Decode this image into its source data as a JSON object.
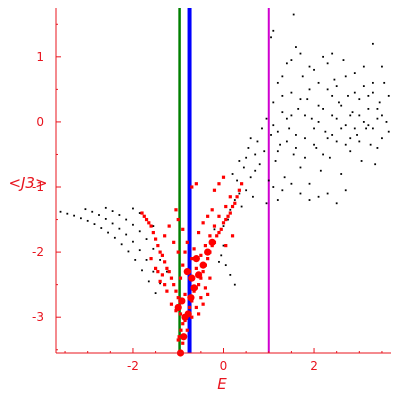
{
  "chart_data": {
    "type": "scatter",
    "title": "",
    "xlabel": "E",
    "ylabel": "<J3>",
    "xlim": [
      -3.7,
      3.7
    ],
    "ylim": [
      -3.55,
      1.75
    ],
    "grid": false,
    "legend": "none",
    "x_ticks": [
      -2,
      0,
      2
    ],
    "x_tick_labels": [
      "-2",
      "0",
      "2"
    ],
    "y_ticks": [
      -3,
      -2,
      -1,
      0,
      1
    ],
    "y_tick_labels": [
      "-3",
      "-2",
      "-1",
      "0",
      "1"
    ],
    "vertical_lines": [
      {
        "x": -0.97,
        "color": "#008000"
      },
      {
        "x": -0.75,
        "color": "#0000ff"
      },
      {
        "x": 1.0,
        "color": "#d000d0"
      }
    ],
    "colors": {
      "axis": "#e8141e",
      "cloud": "#000000",
      "highlight": "#ff0000"
    },
    "series": [
      {
        "color": "#000000",
        "points": [
          [
            -3.6,
            -1.38
          ],
          [
            -3.45,
            -1.41
          ],
          [
            -3.3,
            -1.44
          ],
          [
            -3.15,
            -1.48
          ],
          [
            -3.0,
            -1.52
          ],
          [
            -2.85,
            -1.57
          ],
          [
            -2.7,
            -1.63
          ],
          [
            -2.55,
            -1.7
          ],
          [
            -2.4,
            -1.78
          ],
          [
            -2.25,
            -1.88
          ],
          [
            -2.1,
            -1.99
          ],
          [
            -1.95,
            -2.12
          ],
          [
            -1.8,
            -2.28
          ],
          [
            -1.65,
            -2.45
          ],
          [
            -1.5,
            -2.63
          ],
          [
            -3.05,
            -1.34
          ],
          [
            -2.9,
            -1.38
          ],
          [
            -2.75,
            -1.43
          ],
          [
            -2.6,
            -1.49
          ],
          [
            -2.45,
            -1.56
          ],
          [
            -2.3,
            -1.64
          ],
          [
            -2.15,
            -1.73
          ],
          [
            -2.0,
            -1.84
          ],
          [
            -1.85,
            -1.97
          ],
          [
            -1.7,
            -2.12
          ],
          [
            -1.55,
            -2.3
          ],
          [
            -1.4,
            -2.48
          ],
          [
            -2.6,
            -1.32
          ],
          [
            -2.45,
            -1.37
          ],
          [
            -2.3,
            -1.43
          ],
          [
            -2.15,
            -1.5
          ],
          [
            -2.0,
            -1.58
          ],
          [
            -1.85,
            -1.68
          ],
          [
            -1.7,
            -1.8
          ],
          [
            -1.55,
            -1.95
          ],
          [
            -1.4,
            -2.12
          ],
          [
            -1.25,
            -2.3
          ],
          [
            -2.0,
            -1.33
          ],
          [
            -1.85,
            -1.4
          ],
          [
            -1.7,
            -1.49
          ],
          [
            -1.55,
            -1.6
          ],
          [
            0.2,
            -0.8
          ],
          [
            0.3,
            -0.9
          ],
          [
            0.4,
            -0.95
          ],
          [
            0.45,
            -0.7
          ],
          [
            0.5,
            -0.55
          ],
          [
            0.55,
            -0.4
          ],
          [
            0.6,
            -0.25
          ],
          [
            0.7,
            -0.5
          ],
          [
            0.75,
            -0.3
          ],
          [
            0.8,
            -0.65
          ],
          [
            0.85,
            -0.1
          ],
          [
            0.9,
            -0.45
          ],
          [
            0.95,
            0.05
          ],
          [
            1.0,
            -0.9
          ],
          [
            0.25,
            -1.2
          ],
          [
            0.35,
            -1.1
          ],
          [
            0.4,
            -1.3
          ],
          [
            0.5,
            -1.05
          ],
          [
            0.6,
            -0.85
          ],
          [
            0.65,
            -1.15
          ],
          [
            0.7,
            -0.75
          ],
          [
            0.35,
            -0.6
          ],
          [
            0.15,
            -1.35
          ],
          [
            0.1,
            -1.5
          ],
          [
            1.05,
            -0.2
          ],
          [
            1.1,
            0.3
          ],
          [
            1.15,
            -0.6
          ],
          [
            1.2,
            0.6
          ],
          [
            1.25,
            -0.35
          ],
          [
            1.3,
            0.15
          ],
          [
            1.35,
            -0.85
          ],
          [
            1.4,
            0.9
          ],
          [
            1.45,
            -0.1
          ],
          [
            1.5,
            0.45
          ],
          [
            1.55,
            -0.5
          ],
          [
            1.6,
            1.15
          ],
          [
            1.65,
            0.2
          ],
          [
            1.7,
            -0.7
          ],
          [
            1.75,
            0.7
          ],
          [
            1.8,
            -0.25
          ],
          [
            1.85,
            0.35
          ],
          [
            1.9,
            -0.95
          ],
          [
            1.95,
            0.05
          ],
          [
            2.0,
            0.8
          ],
          [
            2.05,
            -0.4
          ],
          [
            2.1,
            0.25
          ],
          [
            2.15,
            -0.75
          ],
          [
            2.2,
            1.0
          ],
          [
            2.25,
            -0.15
          ],
          [
            2.3,
            0.5
          ],
          [
            2.35,
            -0.55
          ],
          [
            2.4,
            0.1
          ],
          [
            2.45,
            0.65
          ],
          [
            2.5,
            -0.3
          ],
          [
            2.55,
            0.3
          ],
          [
            2.6,
            -0.8
          ],
          [
            2.65,
            0.95
          ],
          [
            2.7,
            -0.05
          ],
          [
            2.75,
            0.4
          ],
          [
            2.8,
            -0.45
          ],
          [
            2.85,
            0.15
          ],
          [
            2.9,
            0.75
          ],
          [
            2.95,
            -0.2
          ],
          [
            3.0,
            0.35
          ],
          [
            3.05,
            -0.6
          ],
          [
            3.1,
            0.55
          ],
          [
            3.15,
            -0.1
          ],
          [
            3.2,
            0.2
          ],
          [
            3.25,
            -0.35
          ],
          [
            3.3,
            0.45
          ],
          [
            3.35,
            -0.65
          ],
          [
            3.4,
            0.05
          ],
          [
            3.45,
            0.3
          ],
          [
            3.5,
            -0.25
          ],
          [
            3.55,
            0.6
          ],
          [
            3.6,
            0.0
          ],
          [
            3.65,
            -0.15
          ],
          [
            3.65,
            0.4
          ],
          [
            1.1,
            -0.05
          ],
          [
            1.2,
            -0.15
          ],
          [
            1.3,
            0.4
          ],
          [
            1.4,
            -0.3
          ],
          [
            1.5,
            0.1
          ],
          [
            1.6,
            -0.2
          ],
          [
            1.7,
            0.35
          ],
          [
            1.8,
            0.1
          ],
          [
            1.9,
            0.5
          ],
          [
            2.0,
            -0.1
          ],
          [
            2.1,
            0.0
          ],
          [
            2.2,
            0.2
          ],
          [
            2.3,
            -0.25
          ],
          [
            2.4,
            0.4
          ],
          [
            2.5,
            0.05
          ],
          [
            2.6,
            0.25
          ],
          [
            2.7,
            -0.35
          ],
          [
            2.8,
            0.1
          ],
          [
            2.9,
            -0.1
          ],
          [
            3.0,
            0.1
          ],
          [
            3.1,
            0.0
          ],
          [
            3.2,
            0.4
          ],
          [
            3.3,
            -0.1
          ],
          [
            3.4,
            0.2
          ],
          [
            3.5,
            0.1
          ],
          [
            1.2,
            -0.45
          ],
          [
            1.4,
            0.05
          ],
          [
            1.6,
            -0.4
          ],
          [
            1.8,
            -0.55
          ],
          [
            2.0,
            -0.35
          ],
          [
            2.2,
            -0.5
          ],
          [
            2.4,
            -0.2
          ],
          [
            2.6,
            -0.1
          ],
          [
            2.8,
            -0.25
          ],
          [
            3.0,
            -0.3
          ],
          [
            3.2,
            -0.05
          ],
          [
            3.4,
            -0.4
          ],
          [
            1.3,
            0.7
          ],
          [
            1.5,
            0.95
          ],
          [
            1.7,
            1.05
          ],
          [
            1.9,
            0.85
          ],
          [
            2.1,
            0.6
          ],
          [
            2.3,
            0.9
          ],
          [
            2.5,
            0.55
          ],
          [
            2.7,
            0.7
          ],
          [
            2.9,
            0.45
          ],
          [
            3.1,
            0.85
          ],
          [
            3.3,
            0.6
          ],
          [
            3.5,
            0.85
          ],
          [
            1.05,
            1.3
          ],
          [
            1.1,
            1.4
          ],
          [
            1.55,
            1.65
          ],
          [
            2.4,
            1.05
          ],
          [
            3.3,
            1.2
          ],
          [
            1.1,
            -1.0
          ],
          [
            1.3,
            -1.05
          ],
          [
            1.5,
            -0.95
          ],
          [
            1.7,
            -1.1
          ],
          [
            1.9,
            -1.2
          ],
          [
            2.1,
            -1.15
          ],
          [
            2.3,
            -1.1
          ],
          [
            2.5,
            -1.25
          ],
          [
            2.7,
            -1.05
          ],
          [
            0.95,
            -1.25
          ],
          [
            1.2,
            -1.2
          ],
          [
            0.0,
            -1.9
          ],
          [
            -0.05,
            -2.05
          ],
          [
            0.05,
            -2.2
          ],
          [
            0.15,
            -2.35
          ],
          [
            0.25,
            -2.5
          ],
          [
            -0.1,
            -2.15
          ],
          [
            0.0,
            -1.6
          ],
          [
            -0.2,
            -1.65
          ]
        ]
      },
      {
        "color": "#ff0000",
        "points": [
          [
            -0.95,
            -3.55
          ],
          [
            -0.98,
            -3.3
          ],
          [
            -0.94,
            -3.2
          ],
          [
            -0.9,
            -3.1
          ],
          [
            -0.85,
            -3.05
          ],
          [
            -0.8,
            -2.95
          ],
          [
            -0.75,
            -2.85
          ],
          [
            -0.7,
            -2.75
          ],
          [
            -0.65,
            -2.6
          ],
          [
            -0.6,
            -2.55
          ],
          [
            -0.55,
            -2.5
          ],
          [
            -0.5,
            -2.4
          ],
          [
            -0.45,
            -2.3
          ],
          [
            -0.4,
            -2.2
          ],
          [
            -0.35,
            -2.1
          ],
          [
            -0.3,
            -2.0
          ],
          [
            -0.25,
            -1.9
          ],
          [
            -0.2,
            -1.85
          ],
          [
            -0.15,
            -1.75
          ],
          [
            -0.1,
            -1.7
          ],
          [
            -0.05,
            -1.65
          ],
          [
            0.0,
            -1.55
          ],
          [
            0.05,
            -1.5
          ],
          [
            0.1,
            -1.45
          ],
          [
            0.15,
            -1.4
          ],
          [
            0.2,
            -1.3
          ],
          [
            0.25,
            -1.25
          ],
          [
            0.3,
            -1.15
          ],
          [
            0.35,
            -1.05
          ],
          [
            0.4,
            -0.95
          ],
          [
            -1.0,
            -2.7
          ],
          [
            -1.05,
            -2.6
          ],
          [
            -1.1,
            -2.5
          ],
          [
            -1.15,
            -2.4
          ],
          [
            -1.2,
            -2.3
          ],
          [
            -1.25,
            -2.25
          ],
          [
            -1.3,
            -2.15
          ],
          [
            -1.35,
            -2.05
          ],
          [
            -1.4,
            -2.0
          ],
          [
            -1.45,
            -1.9
          ],
          [
            -1.5,
            -1.8
          ],
          [
            -1.55,
            -1.7
          ],
          [
            -1.6,
            -1.6
          ],
          [
            -1.65,
            -1.55
          ],
          [
            -1.7,
            -1.5
          ],
          [
            -1.75,
            -1.45
          ],
          [
            -1.8,
            -1.4
          ],
          [
            -1.2,
            -1.6
          ],
          [
            -1.3,
            -1.75
          ],
          [
            -1.1,
            -1.85
          ],
          [
            -1.0,
            -2.0
          ],
          [
            -1.25,
            -2.6
          ],
          [
            -1.15,
            -2.8
          ],
          [
            -1.05,
            -2.9
          ],
          [
            -0.95,
            -2.4
          ],
          [
            -0.9,
            -2.2
          ],
          [
            -0.85,
            -2.0
          ],
          [
            -0.8,
            -1.85
          ],
          [
            -0.7,
            -2.1
          ],
          [
            -0.6,
            -2.25
          ],
          [
            -0.5,
            -2.05
          ],
          [
            -0.4,
            -1.9
          ],
          [
            -0.3,
            -1.75
          ],
          [
            -0.2,
            -1.6
          ],
          [
            -0.1,
            -1.45
          ],
          [
            0.05,
            -1.3
          ],
          [
            0.15,
            -1.15
          ],
          [
            -0.55,
            -1.7
          ],
          [
            -0.45,
            -1.55
          ],
          [
            -0.35,
            -1.45
          ],
          [
            -0.25,
            -1.35
          ],
          [
            -0.65,
            -1.95
          ],
          [
            -0.75,
            -2.3
          ],
          [
            -0.85,
            -2.65
          ],
          [
            -0.95,
            -2.95
          ],
          [
            -0.7,
            -1.0
          ],
          [
            -0.6,
            -0.95
          ],
          [
            -1.0,
            -1.5
          ],
          [
            -1.05,
            -1.35
          ],
          [
            -0.9,
            -1.65
          ],
          [
            -0.2,
            -1.05
          ],
          [
            -0.1,
            -0.95
          ],
          [
            0.0,
            -0.85
          ],
          [
            -0.4,
            -2.55
          ],
          [
            -0.5,
            -2.7
          ],
          [
            -0.6,
            -2.85
          ],
          [
            -0.3,
            -2.4
          ],
          [
            0.05,
            -1.9
          ],
          [
            0.2,
            -1.75
          ],
          [
            -1.4,
            -2.45
          ],
          [
            -1.5,
            -2.25
          ],
          [
            -1.3,
            -2.5
          ],
          [
            -1.6,
            -2.1
          ],
          [
            -1.35,
            -2.35
          ],
          [
            -1.45,
            -2.3
          ],
          [
            -0.8,
            -3.2
          ],
          [
            -0.9,
            -3.4
          ],
          [
            -1.0,
            -3.35
          ],
          [
            -0.7,
            -3.0
          ],
          [
            -0.55,
            -2.95
          ],
          [
            -0.45,
            -2.8
          ],
          [
            -0.35,
            -2.65
          ]
        ]
      },
      {
        "color": "#ff0000",
        "marker": "large",
        "points": [
          [
            -0.95,
            -3.55
          ],
          [
            -0.92,
            -2.75
          ],
          [
            -0.85,
            -3.0
          ],
          [
            -0.88,
            -3.3
          ],
          [
            -0.78,
            -2.95
          ],
          [
            -0.72,
            -2.7
          ],
          [
            -0.65,
            -2.55
          ],
          [
            -0.55,
            -2.35
          ],
          [
            -0.45,
            -2.2
          ],
          [
            -0.35,
            -2.0
          ],
          [
            -0.25,
            -1.85
          ],
          [
            -0.7,
            -2.4
          ],
          [
            -0.6,
            -2.1
          ],
          [
            -1.0,
            -2.85
          ],
          [
            -0.8,
            -2.3
          ]
        ]
      }
    ]
  }
}
